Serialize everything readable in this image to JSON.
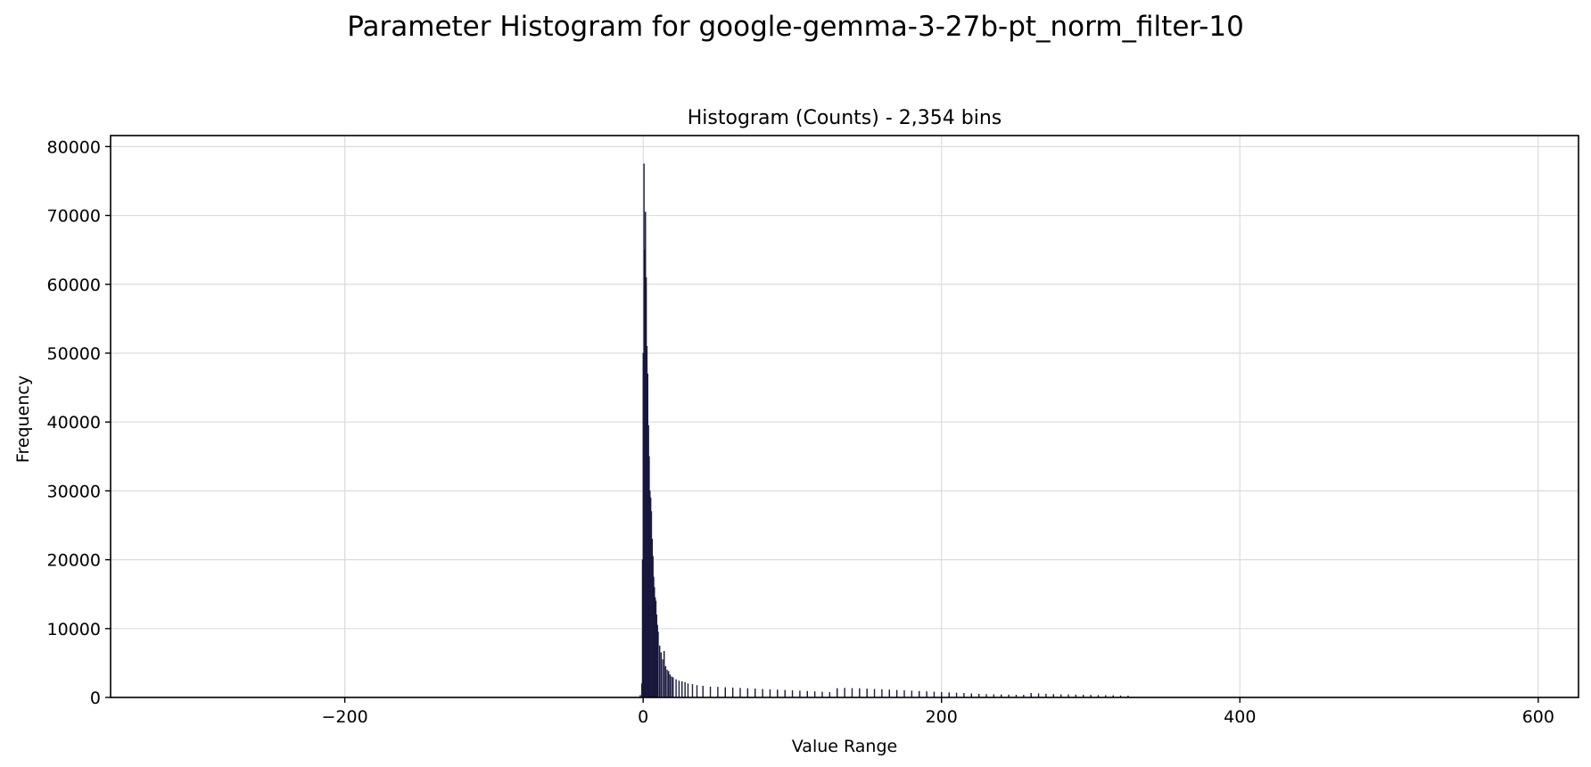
{
  "chart_data": {
    "type": "bar",
    "suptitle": "Parameter Histogram for google-gemma-3-27b-pt_norm_filter-10",
    "title": "Histogram (Counts) - 2,354 bins",
    "xlabel": "Value Range",
    "ylabel": "Frequency",
    "xlim": [
      -357,
      627
    ],
    "ylim": [
      0,
      81600
    ],
    "xticks": [
      -200,
      0,
      200,
      400,
      600
    ],
    "xtick_labels": [
      "−200",
      "0",
      "200",
      "400",
      "600"
    ],
    "yticks": [
      0,
      10000,
      20000,
      30000,
      40000,
      50000,
      60000,
      70000,
      80000
    ],
    "ytick_labels": [
      "0",
      "10000",
      "20000",
      "30000",
      "40000",
      "50000",
      "60000",
      "70000",
      "80000"
    ],
    "grid": true,
    "color": "#0f0f2e",
    "bin_width": 0.42,
    "x": [
      -2.0,
      -1.0,
      -0.5,
      0.0,
      0.5,
      1.0,
      1.5,
      2.0,
      2.5,
      3.0,
      3.5,
      4.0,
      4.5,
      5.0,
      5.5,
      6.0,
      6.5,
      7.0,
      7.5,
      8.0,
      8.5,
      9.0,
      9.5,
      10.0,
      11.0,
      12.0,
      13.0,
      14.0,
      15.0,
      16.0,
      17.0,
      18.0,
      19.0,
      20.0,
      22.0,
      24.0,
      26.0,
      28.0,
      30.0,
      33.0,
      36.0,
      40.0,
      45.0,
      50.0,
      55.0,
      60.0,
      65.0,
      70.0,
      75.0,
      80.0,
      85.0,
      90.0,
      95.0,
      100.0,
      105.0,
      110.0,
      115.0,
      120.0,
      125.0,
      130.0,
      135.0,
      140.0,
      145.0,
      150.0,
      155.0,
      160.0,
      165.0,
      170.0,
      175.0,
      180.0,
      185.0,
      190.0,
      195.0,
      200.0,
      205.0,
      210.0,
      215.0,
      220.0,
      225.0,
      230.0,
      235.0,
      240.0,
      245.0,
      250.0,
      255.0,
      260.0,
      265.0,
      270.0,
      275.0,
      280.0,
      285.0,
      290.0,
      295.0,
      300.0,
      305.0,
      310.0,
      315.0,
      320.0,
      325.0
    ],
    "values": [
      300,
      2000,
      20000,
      50000,
      77500,
      65000,
      70500,
      61000,
      51000,
      47000,
      39500,
      35000,
      30000,
      29000,
      27000,
      23000,
      20500,
      17500,
      16000,
      14500,
      14000,
      12000,
      10500,
      9500,
      7500,
      6500,
      5500,
      6700,
      4500,
      4000,
      3800,
      3300,
      3000,
      2900,
      2600,
      2400,
      2300,
      2200,
      2000,
      1900,
      1750,
      1650,
      1550,
      1500,
      1450,
      1400,
      1350,
      1300,
      1250,
      1200,
      1150,
      1100,
      1050,
      1000,
      950,
      900,
      850,
      800,
      750,
      1300,
      1350,
      1320,
      1300,
      1250,
      1200,
      1150,
      1100,
      1050,
      1000,
      950,
      900,
      850,
      800,
      750,
      700,
      650,
      600,
      550,
      500,
      450,
      420,
      400,
      380,
      360,
      340,
      600,
      550,
      500,
      450,
      420,
      400,
      380,
      350,
      330,
      310,
      290,
      270,
      250,
      230
    ]
  }
}
